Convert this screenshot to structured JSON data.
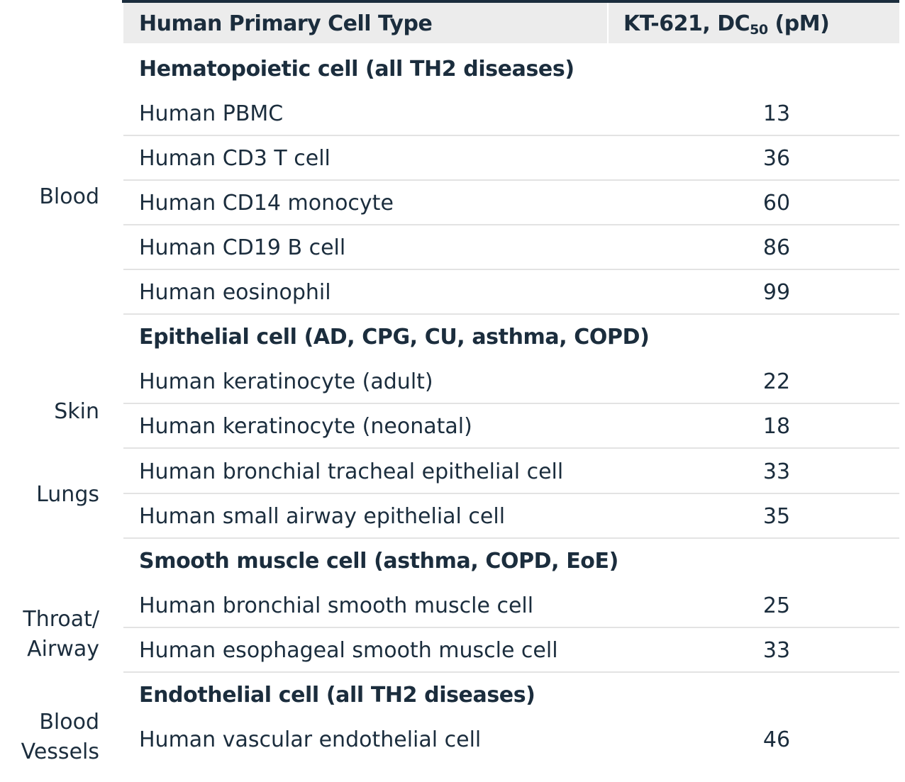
{
  "header": {
    "cell_type_label": "Human Primary Cell Type",
    "value_label_prefix": "KT-621, DC",
    "value_label_sub": "50",
    "value_label_suffix": " (pM)"
  },
  "tissues": {
    "blood": "Blood",
    "skin": "Skin",
    "lungs": "Lungs",
    "throat_line1": "Throat/",
    "throat_line2": "Airway",
    "vessels_line1": "Blood",
    "vessels_line2": "Vessels"
  },
  "groups": {
    "hematopoietic": "Hematopoietic cell (all TH2 diseases)",
    "epithelial": "Epithelial cell (AD, CPG, CU, asthma, COPD)",
    "smooth_muscle": "Smooth muscle cell (asthma, COPD, EoE)",
    "endothelial": "Endothelial cell (all TH2 diseases)"
  },
  "rows": [
    {
      "name": "Human PBMC",
      "value": "13"
    },
    {
      "name": "Human CD3 T cell",
      "value": "36"
    },
    {
      "name": "Human CD14 monocyte",
      "value": "60"
    },
    {
      "name": "Human CD19 B cell",
      "value": "86"
    },
    {
      "name": "Human eosinophil",
      "value": "99"
    },
    {
      "name": "Human keratinocyte (adult)",
      "value": "22"
    },
    {
      "name": "Human keratinocyte (neonatal)",
      "value": "18"
    },
    {
      "name": "Human bronchial tracheal epithelial cell",
      "value": "33"
    },
    {
      "name": "Human small airway epithelial cell",
      "value": "35"
    },
    {
      "name": "Human bronchial smooth muscle cell",
      "value": "25"
    },
    {
      "name": "Human esophageal smooth muscle cell",
      "value": "33"
    },
    {
      "name": "Human vascular endothelial cell",
      "value": "46"
    }
  ]
}
